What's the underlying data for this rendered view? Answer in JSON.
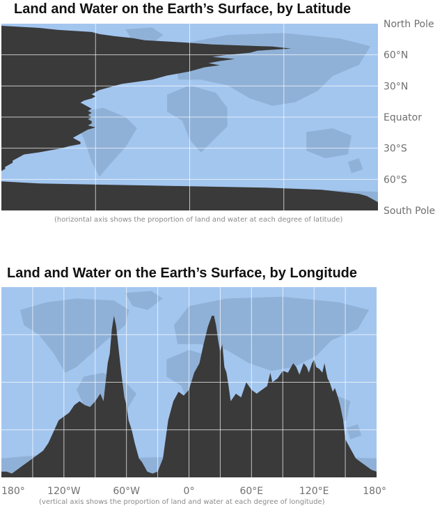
{
  "colors": {
    "water": "#a3c6ef",
    "land_shape": "#8aa9cf",
    "land_area": "#3a3a3a",
    "grid": "#ffffff"
  },
  "chart_data": [
    {
      "type": "area",
      "title": "Land and Water on the Earth’s Surface, by Latitude",
      "note": "(horizontal axis shows the proportion of land and water at each degree of latitude)",
      "y_tick_labels": [
        "North Pole",
        "60°N",
        "30°N",
        "Equator",
        "30°S",
        "60°S",
        "South Pole"
      ],
      "y_ticks": [
        90,
        60,
        30,
        0,
        -30,
        -60,
        -90
      ],
      "ylim": [
        -90,
        90
      ],
      "xlim": [
        0,
        1
      ],
      "grid": true,
      "series": [
        {
          "latitude": [
            90,
            88,
            86,
            84,
            82,
            80,
            78,
            76,
            74,
            72,
            70,
            68,
            66,
            64,
            62,
            60,
            58,
            56,
            54,
            52,
            50,
            48,
            46,
            44,
            42,
            40,
            38,
            36,
            34,
            32,
            30,
            28,
            26,
            24,
            22,
            20,
            18,
            16,
            14,
            12,
            10,
            8,
            6,
            4,
            2,
            0,
            -2,
            -4,
            -6,
            -8,
            -10,
            -12,
            -14,
            -16,
            -18,
            -20,
            -22,
            -24,
            -26,
            -28,
            -30,
            -32,
            -34,
            -36,
            -38,
            -40,
            -42,
            -44,
            -46,
            -48,
            -50,
            -52,
            -54,
            -56,
            -58,
            -60,
            -62,
            -64,
            -66,
            -68,
            -70,
            -72,
            -74,
            -76,
            -78,
            -80,
            -82,
            -84,
            -86,
            -88,
            -90
          ],
          "land_fraction": [
            0.0,
            0.0,
            0.1,
            0.15,
            0.24,
            0.26,
            0.3,
            0.35,
            0.38,
            0.48,
            0.56,
            0.72,
            0.77,
            0.68,
            0.66,
            0.6,
            0.56,
            0.62,
            0.58,
            0.55,
            0.58,
            0.54,
            0.52,
            0.5,
            0.47,
            0.44,
            0.42,
            0.4,
            0.36,
            0.32,
            0.3,
            0.28,
            0.26,
            0.25,
            0.24,
            0.25,
            0.24,
            0.22,
            0.21,
            0.22,
            0.23,
            0.24,
            0.23,
            0.24,
            0.23,
            0.24,
            0.23,
            0.24,
            0.24,
            0.23,
            0.25,
            0.23,
            0.22,
            0.21,
            0.2,
            0.19,
            0.2,
            0.21,
            0.21,
            0.18,
            0.16,
            0.13,
            0.1,
            0.06,
            0.05,
            0.04,
            0.03,
            0.03,
            0.02,
            0.01,
            0.01,
            0.0,
            0.0,
            0.0,
            0.0,
            0.0,
            0.0,
            0.1,
            0.4,
            0.7,
            0.85,
            0.9,
            0.95,
            0.97,
            0.98,
            0.99,
            1.0,
            1.0,
            1.0,
            1.0,
            1.0
          ]
        }
      ]
    },
    {
      "type": "area",
      "title": "Land and Water on the Earth’s Surface, by Longitude",
      "note": "(vertical axis shows the proportion of land and water at each degree of longitude)",
      "x_tick_labels": [
        "180°",
        "120°W",
        "60°W",
        "0°",
        "60°E",
        "120°E",
        "180°"
      ],
      "x_ticks": [
        -180,
        -120,
        -60,
        0,
        60,
        120,
        180
      ],
      "xlim": [
        -180,
        180
      ],
      "ylim": [
        0,
        1
      ],
      "grid": true,
      "series": [
        {
          "longitude": [
            -180,
            -175,
            -170,
            -165,
            -160,
            -155,
            -150,
            -145,
            -140,
            -135,
            -130,
            -125,
            -120,
            -115,
            -110,
            -105,
            -100,
            -95,
            -90,
            -85,
            -82,
            -80,
            -78,
            -76,
            -74,
            -72,
            -70,
            -68,
            -65,
            -62,
            -60,
            -58,
            -55,
            -52,
            -50,
            -48,
            -45,
            -40,
            -35,
            -30,
            -25,
            -20,
            -15,
            -10,
            -5,
            0,
            5,
            10,
            14,
            18,
            20,
            22,
            24,
            26,
            28,
            30,
            32,
            34,
            36,
            38,
            40,
            45,
            50,
            55,
            60,
            65,
            70,
            75,
            78,
            80,
            85,
            90,
            95,
            100,
            103,
            106,
            110,
            113,
            115,
            118,
            120,
            122,
            125,
            128,
            130,
            133,
            135,
            138,
            140,
            143,
            145,
            148,
            150,
            155,
            160,
            165,
            170,
            175,
            180
          ],
          "land_fraction": [
            0.03,
            0.03,
            0.02,
            0.04,
            0.06,
            0.08,
            0.1,
            0.12,
            0.14,
            0.18,
            0.24,
            0.3,
            0.32,
            0.34,
            0.38,
            0.4,
            0.38,
            0.37,
            0.4,
            0.44,
            0.4,
            0.5,
            0.6,
            0.65,
            0.78,
            0.85,
            0.8,
            0.7,
            0.55,
            0.42,
            0.38,
            0.3,
            0.25,
            0.18,
            0.14,
            0.1,
            0.08,
            0.03,
            0.02,
            0.03,
            0.1,
            0.3,
            0.4,
            0.45,
            0.43,
            0.46,
            0.55,
            0.6,
            0.7,
            0.79,
            0.82,
            0.85,
            0.85,
            0.8,
            0.72,
            0.66,
            0.7,
            0.58,
            0.55,
            0.48,
            0.4,
            0.44,
            0.42,
            0.5,
            0.46,
            0.44,
            0.46,
            0.48,
            0.55,
            0.5,
            0.52,
            0.56,
            0.55,
            0.6,
            0.58,
            0.54,
            0.6,
            0.58,
            0.55,
            0.6,
            0.62,
            0.58,
            0.57,
            0.55,
            0.6,
            0.52,
            0.5,
            0.45,
            0.47,
            0.42,
            0.38,
            0.3,
            0.2,
            0.15,
            0.1,
            0.08,
            0.06,
            0.04,
            0.03
          ]
        }
      ]
    }
  ]
}
